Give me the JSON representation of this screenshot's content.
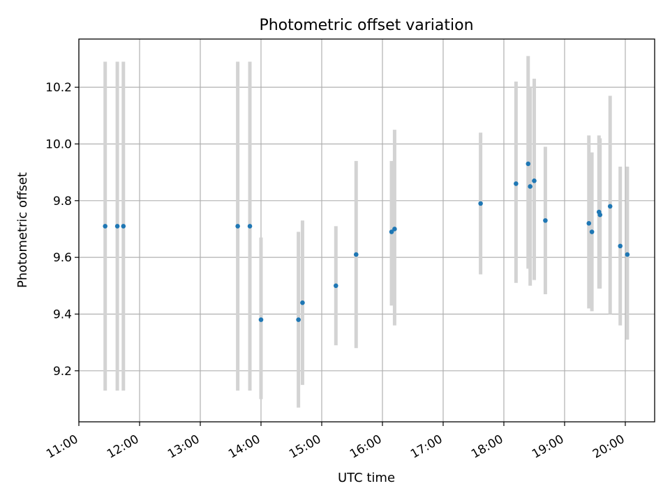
{
  "chart_data": {
    "type": "scatter",
    "title": "Photometric offset variation",
    "xlabel": "UTC time",
    "ylabel": "Photometric offset",
    "x_ticks": [
      "11:00",
      "12:00",
      "13:00",
      "14:00",
      "15:00",
      "16:00",
      "17:00",
      "18:00",
      "19:00",
      "20:00"
    ],
    "y_ticks": [
      "9.2",
      "9.4",
      "9.6",
      "9.8",
      "10.0",
      "10.2"
    ],
    "xlim": [
      "11:00",
      "20:29"
    ],
    "ylim": [
      9.02,
      10.37
    ],
    "grid": true,
    "colors": {
      "points": "#1f77b4",
      "errorbars": "#d3d3d3",
      "grid": "#b0b0b0"
    },
    "points": [
      {
        "x": "11:26",
        "y": 9.71,
        "ylow": 9.13,
        "yhigh": 10.29
      },
      {
        "x": "11:38",
        "y": 9.71,
        "ylow": 9.13,
        "yhigh": 10.29
      },
      {
        "x": "11:44",
        "y": 9.71,
        "ylow": 9.13,
        "yhigh": 10.29
      },
      {
        "x": "13:37",
        "y": 9.71,
        "ylow": 9.13,
        "yhigh": 10.29
      },
      {
        "x": "13:49",
        "y": 9.71,
        "ylow": 9.13,
        "yhigh": 10.29
      },
      {
        "x": "14:00",
        "y": 9.38,
        "ylow": 9.1,
        "yhigh": 9.67
      },
      {
        "x": "14:37",
        "y": 9.38,
        "ylow": 9.07,
        "yhigh": 9.69
      },
      {
        "x": "14:41",
        "y": 9.44,
        "ylow": 9.15,
        "yhigh": 9.73
      },
      {
        "x": "15:14",
        "y": 9.5,
        "ylow": 9.29,
        "yhigh": 9.71
      },
      {
        "x": "15:34",
        "y": 9.61,
        "ylow": 9.28,
        "yhigh": 9.94
      },
      {
        "x": "16:09",
        "y": 9.69,
        "ylow": 9.43,
        "yhigh": 9.94
      },
      {
        "x": "16:12",
        "y": 9.7,
        "ylow": 9.36,
        "yhigh": 10.05
      },
      {
        "x": "17:37",
        "y": 9.79,
        "ylow": 9.54,
        "yhigh": 10.04
      },
      {
        "x": "18:12",
        "y": 9.86,
        "ylow": 9.51,
        "yhigh": 10.22
      },
      {
        "x": "18:24",
        "y": 9.93,
        "ylow": 9.56,
        "yhigh": 10.31
      },
      {
        "x": "18:26",
        "y": 9.85,
        "ylow": 9.5,
        "yhigh": 10.2
      },
      {
        "x": "18:30",
        "y": 9.87,
        "ylow": 9.52,
        "yhigh": 10.23
      },
      {
        "x": "18:41",
        "y": 9.73,
        "ylow": 9.47,
        "yhigh": 9.99
      },
      {
        "x": "19:24",
        "y": 9.72,
        "ylow": 9.42,
        "yhigh": 10.03
      },
      {
        "x": "19:27",
        "y": 9.69,
        "ylow": 9.41,
        "yhigh": 9.97
      },
      {
        "x": "19:34",
        "y": 9.76,
        "ylow": 9.49,
        "yhigh": 10.03
      },
      {
        "x": "19:35",
        "y": 9.75,
        "ylow": 9.49,
        "yhigh": 10.02
      },
      {
        "x": "19:45",
        "y": 9.78,
        "ylow": 9.4,
        "yhigh": 10.17
      },
      {
        "x": "19:55",
        "y": 9.64,
        "ylow": 9.36,
        "yhigh": 9.92
      },
      {
        "x": "20:02",
        "y": 9.61,
        "ylow": 9.31,
        "yhigh": 9.92
      }
    ]
  }
}
